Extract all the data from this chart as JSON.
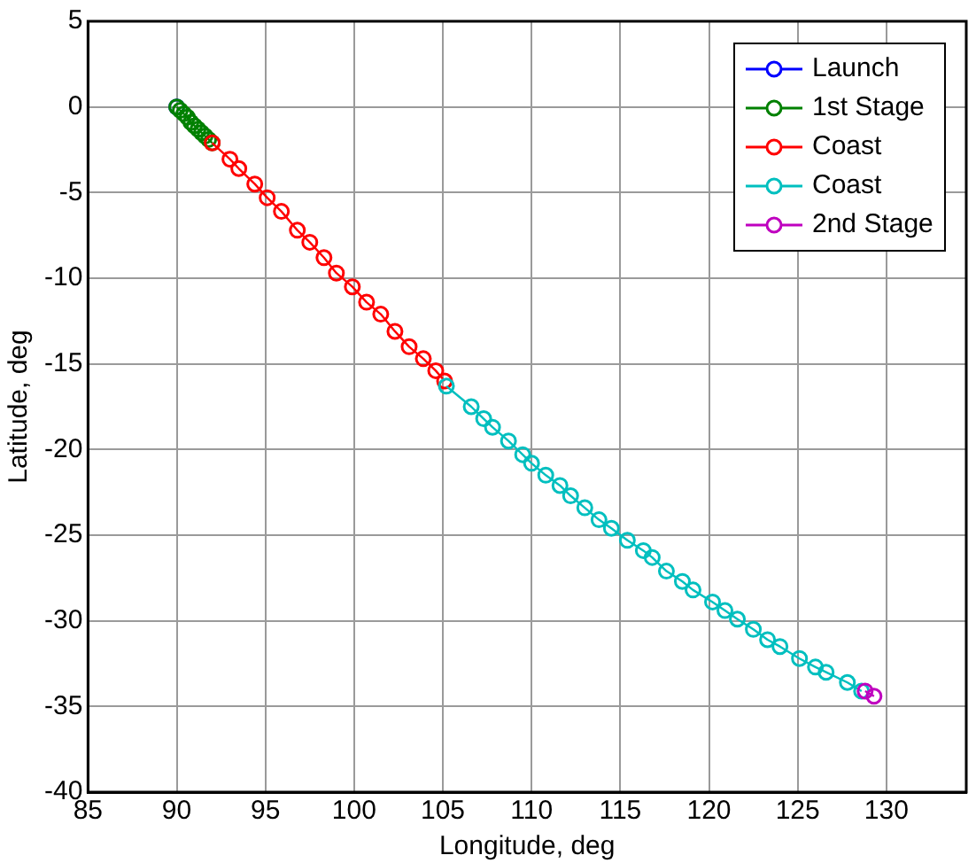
{
  "chart_data": {
    "type": "line",
    "xlabel": "Longitude, deg",
    "ylabel": "Latitude, deg",
    "xlim": [
      85,
      134.5
    ],
    "xticks": [
      85,
      90,
      95,
      100,
      105,
      110,
      115,
      120,
      125,
      130
    ],
    "ylim": [
      -40,
      5
    ],
    "yticks": [
      -40,
      -35,
      -30,
      -25,
      -20,
      -15,
      -10,
      -5,
      0,
      5
    ],
    "grid": true,
    "legend": "top right",
    "marker": "circle",
    "line_style": "solid",
    "series": [
      {
        "name": "Launch",
        "color": "#0000ff",
        "x": [
          90
        ],
        "values": [
          0
        ]
      },
      {
        "name": "1st Stage",
        "color": "#008000",
        "x": [
          90,
          90.2,
          90.4,
          90.6,
          90.8,
          91,
          91.2,
          91.4,
          91.6,
          91.8,
          92.0
        ],
        "values": [
          0,
          -0.2,
          -0.4,
          -0.6,
          -0.9,
          -1.1,
          -1.3,
          -1.5,
          -1.7,
          -1.9,
          -2.1
        ]
      },
      {
        "name": "Coast",
        "color": "#ff0000",
        "x": [
          92.0,
          93.0,
          93.5,
          94.4,
          95.1,
          95.9,
          96.8,
          97.5,
          98.3,
          99.0,
          99.9,
          100.7,
          101.5,
          102.3,
          103.1,
          103.9,
          104.6,
          105.1
        ],
        "values": [
          -2.1,
          -3.05,
          -3.6,
          -4.5,
          -5.3,
          -6.1,
          -7.2,
          -7.9,
          -8.8,
          -9.7,
          -10.5,
          -11.4,
          -12.1,
          -13.1,
          -14.0,
          -14.7,
          -15.4,
          -16.0
        ]
      },
      {
        "name": "Coast",
        "color": "#00bfbf",
        "x": [
          105.2,
          106.6,
          107.3,
          107.8,
          108.7,
          109.5,
          110.0,
          110.8,
          111.6,
          112.2,
          113.0,
          113.8,
          114.5,
          115.4,
          116.3,
          116.8,
          117.6,
          118.5,
          119.1,
          120.2,
          120.9,
          121.6,
          122.5,
          123.3,
          124.0,
          125.1,
          126.0,
          126.6,
          127.8,
          128.6
        ],
        "values": [
          -16.3,
          -17.5,
          -18.2,
          -18.7,
          -19.5,
          -20.3,
          -20.8,
          -21.5,
          -22.1,
          -22.7,
          -23.4,
          -24.1,
          -24.6,
          -25.3,
          -25.9,
          -26.3,
          -27.1,
          -27.7,
          -28.2,
          -28.9,
          -29.4,
          -29.9,
          -30.5,
          -31.1,
          -31.5,
          -32.2,
          -32.7,
          -33.0,
          -33.6,
          -34.1
        ]
      },
      {
        "name": "2nd Stage",
        "color": "#bf00bf",
        "x": [
          128.8,
          129.3
        ],
        "values": [
          -34.1,
          -34.4
        ]
      }
    ]
  }
}
